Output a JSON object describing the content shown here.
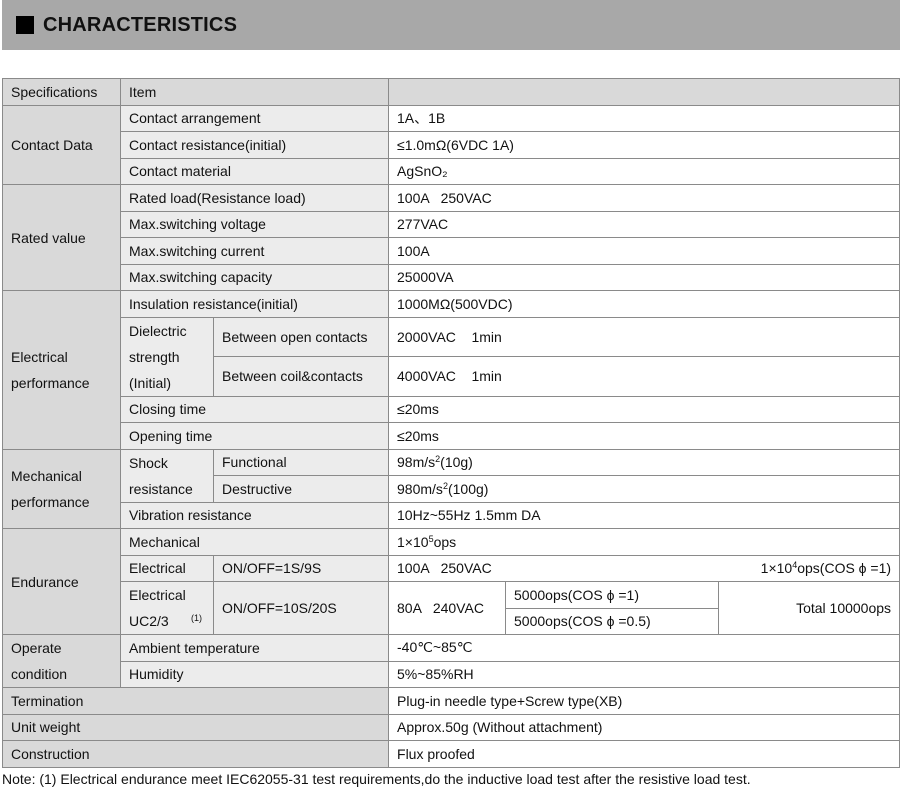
{
  "title": "CHARACTERISTICS",
  "header": {
    "spec": "Specifications",
    "item": "Item",
    "value": ""
  },
  "contact": {
    "group": "Contact Data",
    "arr": {
      "item": "Contact arrangement",
      "value": "1A、1B"
    },
    "res": {
      "item": "Contact resistance(initial)",
      "value": "≤1.0mΩ(6VDC 1A)"
    },
    "mat": {
      "item": "Contact material",
      "value": "AgSnO₂"
    }
  },
  "rated": {
    "group": "Rated value",
    "load": {
      "item": "Rated load(Resistance load)",
      "value": "100A   250VAC"
    },
    "volt": {
      "item": "Max.switching voltage",
      "value": "277VAC"
    },
    "curr": {
      "item": "Max.switching current",
      "value": "100A"
    },
    "cap": {
      "item": "Max.switching capacity",
      "value": "25000VA"
    }
  },
  "elec": {
    "group": "Electrical performance",
    "ins": {
      "item": "Insulation resistance(initial)",
      "value": "1000MΩ(500VDC)"
    },
    "diel": {
      "item": "Dielectric strength (Initial)",
      "open": {
        "item": "Between open contacts",
        "value": "2000VAC    1min"
      },
      "coil": {
        "item": "Between coil&contacts",
        "value": "4000VAC    1min"
      }
    },
    "close": {
      "item": "Closing time",
      "value": "≤20ms"
    },
    "opent": {
      "item": "Opening time",
      "value": "≤20ms"
    }
  },
  "mech": {
    "group": "Mechanical performance",
    "shock": {
      "item": "Shock resistance",
      "func": {
        "item": "Functional",
        "v1": "98m/s",
        "sup": "2",
        "v2": "(10g)"
      },
      "dest": {
        "item": "Destructive",
        "v1": "980m/s",
        "sup": "2",
        "v2": "(100g)"
      }
    },
    "vib": {
      "item": "Vibration resistance",
      "value": "10Hz~55Hz 1.5mm DA"
    }
  },
  "endur": {
    "group": "Endurance",
    "mech": {
      "item": "Mechanical",
      "v1": "1×10",
      "sup": "5",
      "v2": "ops"
    },
    "elec": {
      "item": "Electrical",
      "cond": "ON/OFF=1S/9S",
      "load": "100A   250VAC",
      "r1": "1×10",
      "sup": "4",
      "r2": "ops(COS ϕ =1)"
    },
    "uc": {
      "item": "Electrical UC2/3",
      "sup": "(1)",
      "cond": "ON/OFF=10S/20S",
      "load": "80A   240VAC",
      "a": "5000ops(COS ϕ =1)",
      "b": "5000ops(COS ϕ =0.5)",
      "total": "Total 10000ops"
    }
  },
  "oper": {
    "group": "Operate condition",
    "amb": {
      "item": "Ambient temperature",
      "value": "-40℃~85℃"
    },
    "hum": {
      "item": "Humidity",
      "value": "5%~85%RH"
    }
  },
  "term": {
    "item": "Termination",
    "value": "Plug-in needle type+Screw type(XB)"
  },
  "weight": {
    "item": "Unit weight",
    "value": "Approx.50g (Without attachment)"
  },
  "constr": {
    "item": "Construction",
    "value": "Flux proofed"
  },
  "note": "Note: (1) Electrical endurance meet IEC62055-31 test requirements,do the inductive load test after the resistive load test."
}
